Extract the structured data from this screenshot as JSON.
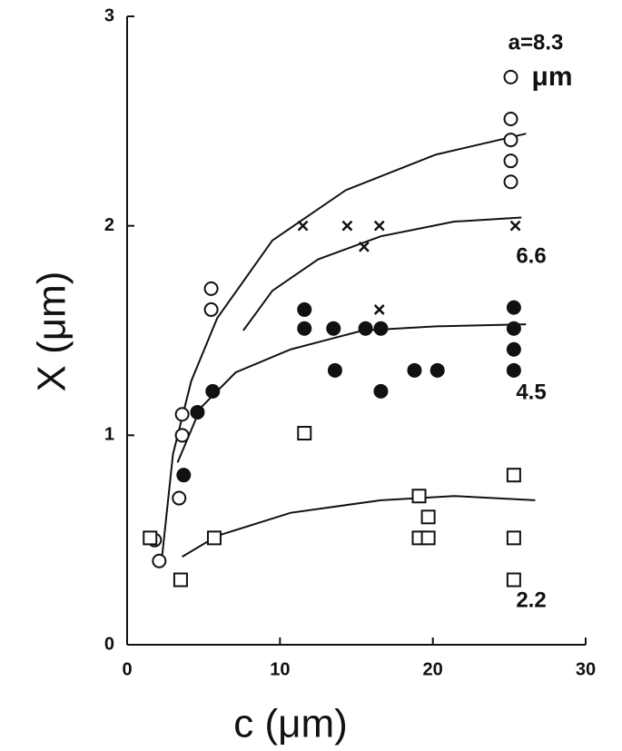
{
  "chart_data": {
    "type": "scatter",
    "xlabel": "c  (μm)",
    "ylabel": "X  (μm)",
    "xlim": [
      0,
      30
    ],
    "ylim": [
      0,
      3
    ],
    "xticks": [
      0,
      10,
      20,
      30
    ],
    "yticks": [
      0,
      1,
      2,
      3
    ],
    "unit_note": "μm",
    "series": [
      {
        "name": "a=8.3",
        "marker": "open-circle",
        "color": "#111",
        "x": [
          1.8,
          2.1,
          3.4,
          3.6,
          3.6,
          5.5,
          5.5,
          25.1,
          25.1,
          25.1,
          25.1,
          25.1
        ],
        "values": [
          0.5,
          0.4,
          0.7,
          1.0,
          1.1,
          1.6,
          1.7,
          2.71,
          2.51,
          2.41,
          2.31,
          2.21
        ]
      },
      {
        "name": "6.6",
        "marker": "cross",
        "color": "#111",
        "x": [
          11.5,
          14.4,
          15.5,
          16.5,
          16.5,
          25.4
        ],
        "values": [
          2.0,
          2.0,
          1.9,
          2.0,
          1.6,
          2.0
        ]
      },
      {
        "name": "4.5",
        "marker": "filled-circle",
        "color": "#111",
        "x": [
          3.7,
          4.6,
          5.6,
          11.6,
          11.6,
          13.5,
          13.6,
          15.6,
          16.6,
          16.6,
          18.8,
          20.3,
          25.3,
          25.3,
          25.3,
          25.3
        ],
        "values": [
          0.81,
          1.11,
          1.21,
          1.6,
          1.51,
          1.51,
          1.31,
          1.51,
          1.51,
          1.21,
          1.31,
          1.31,
          1.61,
          1.51,
          1.41,
          1.31
        ]
      },
      {
        "name": "2.2",
        "marker": "square",
        "color": "#111",
        "x": [
          1.5,
          3.5,
          5.7,
          11.6,
          19.1,
          19.7,
          19.1,
          19.7,
          25.3,
          25.3,
          25.3
        ],
        "values": [
          0.51,
          0.31,
          0.51,
          1.01,
          0.71,
          0.61,
          0.51,
          0.51,
          0.81,
          0.51,
          0.31
        ]
      }
    ],
    "fits": [
      {
        "x": [
          2.3,
          3.0,
          4.2,
          5.9,
          9.5,
          14.3,
          20.2,
          26.1
        ],
        "values": [
          0.43,
          0.91,
          1.26,
          1.56,
          1.93,
          2.17,
          2.34,
          2.44
        ]
      },
      {
        "x": [
          7.6,
          9.5,
          12.5,
          16.6,
          21.4,
          25.8
        ],
        "values": [
          1.5,
          1.69,
          1.84,
          1.95,
          2.02,
          2.04
        ]
      },
      {
        "x": [
          3.3,
          4.8,
          7.1,
          10.7,
          15.4,
          20.2,
          26.1
        ],
        "values": [
          0.87,
          1.13,
          1.3,
          1.41,
          1.5,
          1.52,
          1.53
        ]
      },
      {
        "x": [
          3.6,
          5.9,
          10.7,
          16.6,
          21.4,
          26.7
        ],
        "values": [
          0.42,
          0.52,
          0.63,
          0.69,
          0.71,
          0.69
        ]
      }
    ]
  }
}
